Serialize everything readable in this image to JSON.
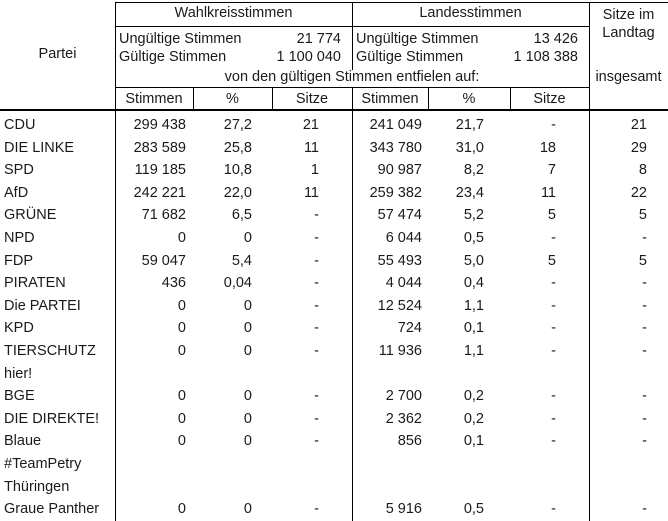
{
  "table": {
    "partei_header": "Partei",
    "wahlkreis": {
      "title": "Wahlkreisstimmen",
      "invalid_label": "Ungültige Stimmen",
      "invalid_value": "21 774",
      "valid_label": "Gültige Stimmen",
      "valid_value": "1 100 040"
    },
    "landes": {
      "title": "Landesstimmen",
      "invalid_label": "Ungültige Stimmen",
      "invalid_value": "13 426",
      "valid_label": "Gültige Stimmen",
      "valid_value": "1 108 388"
    },
    "valid_votes_note": "von den gültigen Stimmen entfielen auf:",
    "subheaders": {
      "stimmen": "Stimmen",
      "percent": "%",
      "sitze": "Sitze"
    },
    "total_header": {
      "line1": "Sitze im",
      "line2": "Landtag",
      "line3": "insgesamt"
    },
    "rows": [
      {
        "partei": "CDU",
        "wk_stimmen": "299 438",
        "wk_pct": "27,2",
        "wk_sitze": "21",
        "ls_stimmen": "241 049",
        "ls_pct": "21,7",
        "ls_sitze": "-",
        "total": "21"
      },
      {
        "partei": "DIE LINKE",
        "wk_stimmen": "283 589",
        "wk_pct": "25,8",
        "wk_sitze": "11",
        "ls_stimmen": "343 780",
        "ls_pct": "31,0",
        "ls_sitze": "18",
        "total": "29"
      },
      {
        "partei": "SPD",
        "wk_stimmen": "119 185",
        "wk_pct": "10,8",
        "wk_sitze": "1",
        "ls_stimmen": "90 987",
        "ls_pct": "8,2",
        "ls_sitze": "7",
        "total": "8"
      },
      {
        "partei": "AfD",
        "wk_stimmen": "242 221",
        "wk_pct": "22,0",
        "wk_sitze": "11",
        "ls_stimmen": "259 382",
        "ls_pct": "23,4",
        "ls_sitze": "11",
        "total": "22"
      },
      {
        "partei": "GRÜNE",
        "wk_stimmen": "71 682",
        "wk_pct": "6,5",
        "wk_sitze": "-",
        "ls_stimmen": "57 474",
        "ls_pct": "5,2",
        "ls_sitze": "5",
        "total": "5"
      },
      {
        "partei": "NPD",
        "wk_stimmen": "0",
        "wk_pct": "0",
        "wk_sitze": "-",
        "ls_stimmen": "6 044",
        "ls_pct": "0,5",
        "ls_sitze": "-",
        "total": "-"
      },
      {
        "partei": "FDP",
        "wk_stimmen": "59 047",
        "wk_pct": "5,4",
        "wk_sitze": "-",
        "ls_stimmen": "55 493",
        "ls_pct": "5,0",
        "ls_sitze": "5",
        "total": "5"
      },
      {
        "partei": "PIRATEN",
        "wk_stimmen": "436",
        "wk_pct": "0,04",
        "wk_sitze": "-",
        "ls_stimmen": "4 044",
        "ls_pct": "0,4",
        "ls_sitze": "-",
        "total": "-"
      },
      {
        "partei": "Die PARTEI",
        "wk_stimmen": "0",
        "wk_pct": "0",
        "wk_sitze": "-",
        "ls_stimmen": "12 524",
        "ls_pct": "1,1",
        "ls_sitze": "-",
        "total": "-"
      },
      {
        "partei": "KPD",
        "wk_stimmen": "0",
        "wk_pct": "0",
        "wk_sitze": "-",
        "ls_stimmen": "724",
        "ls_pct": "0,1",
        "ls_sitze": "-",
        "total": "-"
      },
      {
        "partei": "TIERSCHUTZ\nhier!",
        "wk_stimmen": "0",
        "wk_pct": "0",
        "wk_sitze": "-",
        "ls_stimmen": "11 936",
        "ls_pct": "1,1",
        "ls_sitze": "-",
        "total": "-"
      },
      {
        "partei": "BGE",
        "wk_stimmen": "0",
        "wk_pct": "0",
        "wk_sitze": "-",
        "ls_stimmen": "2 700",
        "ls_pct": "0,2",
        "ls_sitze": "-",
        "total": "-"
      },
      {
        "partei": "DIE DIREKTE!",
        "wk_stimmen": "0",
        "wk_pct": "0",
        "wk_sitze": "-",
        "ls_stimmen": "2 362",
        "ls_pct": "0,2",
        "ls_sitze": "-",
        "total": "-"
      },
      {
        "partei": "Blaue\n#TeamPetry\nThüringen",
        "wk_stimmen": "0",
        "wk_pct": "0",
        "wk_sitze": "-",
        "ls_stimmen": "856",
        "ls_pct": "0,1",
        "ls_sitze": "-",
        "total": "-"
      },
      {
        "partei": "Graue Panther",
        "wk_stimmen": "0",
        "wk_pct": "0",
        "wk_sitze": "-",
        "ls_stimmen": "5 916",
        "ls_pct": "0,5",
        "ls_sitze": "-",
        "total": "-"
      }
    ]
  },
  "colors": {
    "text": "#1a1a1a",
    "border": "#000000",
    "background": "#ffffff"
  }
}
